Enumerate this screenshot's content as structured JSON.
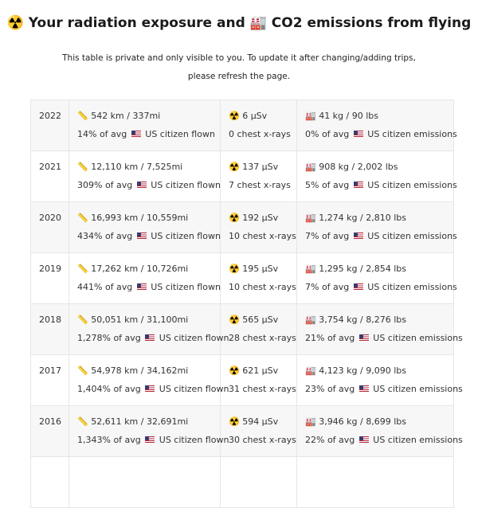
{
  "header": {
    "radiation_icon": "☢️",
    "title_part1": "Your radiation exposure and",
    "factory_icon": "🏭",
    "title_part2": "CO2 emissions from flying",
    "subtitle": "This table is private and only visible to you. To update it after changing/adding trips, please refresh the page."
  },
  "icons": {
    "distance": "ruler-icon",
    "radiation": "radiation-icon",
    "emissions": "factory-icon",
    "flag": "us-flag-icon"
  },
  "rows": [
    {
      "year": "2022",
      "distance": "📏 542 km / 337mi",
      "distance_pct": "14% of avg",
      "distance_suffix": "US citizen flown",
      "dose": "☢️ 6 µSv",
      "xrays": "0 chest x-rays",
      "co2": "🏭 41 kg / 90 lbs",
      "co2_pct": "0% of avg",
      "co2_suffix": "US citizen emissions"
    },
    {
      "year": "2021",
      "distance": "📏 12,110 km / 7,525mi",
      "distance_pct": "309% of avg",
      "distance_suffix": "US citizen flown",
      "dose": "☢️ 137 µSv",
      "xrays": "7 chest x-rays",
      "co2": "🏭 908 kg / 2,002 lbs",
      "co2_pct": "5% of avg",
      "co2_suffix": "US citizen emissions"
    },
    {
      "year": "2020",
      "distance": "📏 16,993 km / 10,559mi",
      "distance_pct": "434% of avg",
      "distance_suffix": "US citizen flown",
      "dose": "☢️ 192 µSv",
      "xrays": "10 chest x-rays",
      "co2": "🏭 1,274 kg / 2,810 lbs",
      "co2_pct": "7% of avg",
      "co2_suffix": "US citizen emissions"
    },
    {
      "year": "2019",
      "distance": "📏 17,262 km / 10,726mi",
      "distance_pct": "441% of avg",
      "distance_suffix": "US citizen flown",
      "dose": "☢️ 195 µSv",
      "xrays": "10 chest x-rays",
      "co2": "🏭 1,295 kg / 2,854 lbs",
      "co2_pct": "7% of avg",
      "co2_suffix": "US citizen emissions"
    },
    {
      "year": "2018",
      "distance": "📏 50,051 km / 31,100mi",
      "distance_pct": "1,278% of avg",
      "distance_suffix": "US citizen flown",
      "dose": "☢️ 565 µSv",
      "xrays": "28 chest x-rays",
      "co2": "🏭 3,754 kg / 8,276 lbs",
      "co2_pct": "21% of avg",
      "co2_suffix": "US citizen emissions"
    },
    {
      "year": "2017",
      "distance": "📏 54,978 km / 34,162mi",
      "distance_pct": "1,404% of avg",
      "distance_suffix": "US citizen flown",
      "dose": "☢️ 621 µSv",
      "xrays": "31 chest x-rays",
      "co2": "🏭 4,123 kg / 9,090 lbs",
      "co2_pct": "23% of avg",
      "co2_suffix": "US citizen emissions"
    },
    {
      "year": "2016",
      "distance": "📏 52,611 km / 32,691mi",
      "distance_pct": "1,343% of avg",
      "distance_suffix": "US citizen flown",
      "dose": "☢️ 594 µSv",
      "xrays": "30 chest x-rays",
      "co2": "🏭 3,946 kg / 8,699 lbs",
      "co2_pct": "22% of avg",
      "co2_suffix": "US citizen emissions"
    }
  ]
}
